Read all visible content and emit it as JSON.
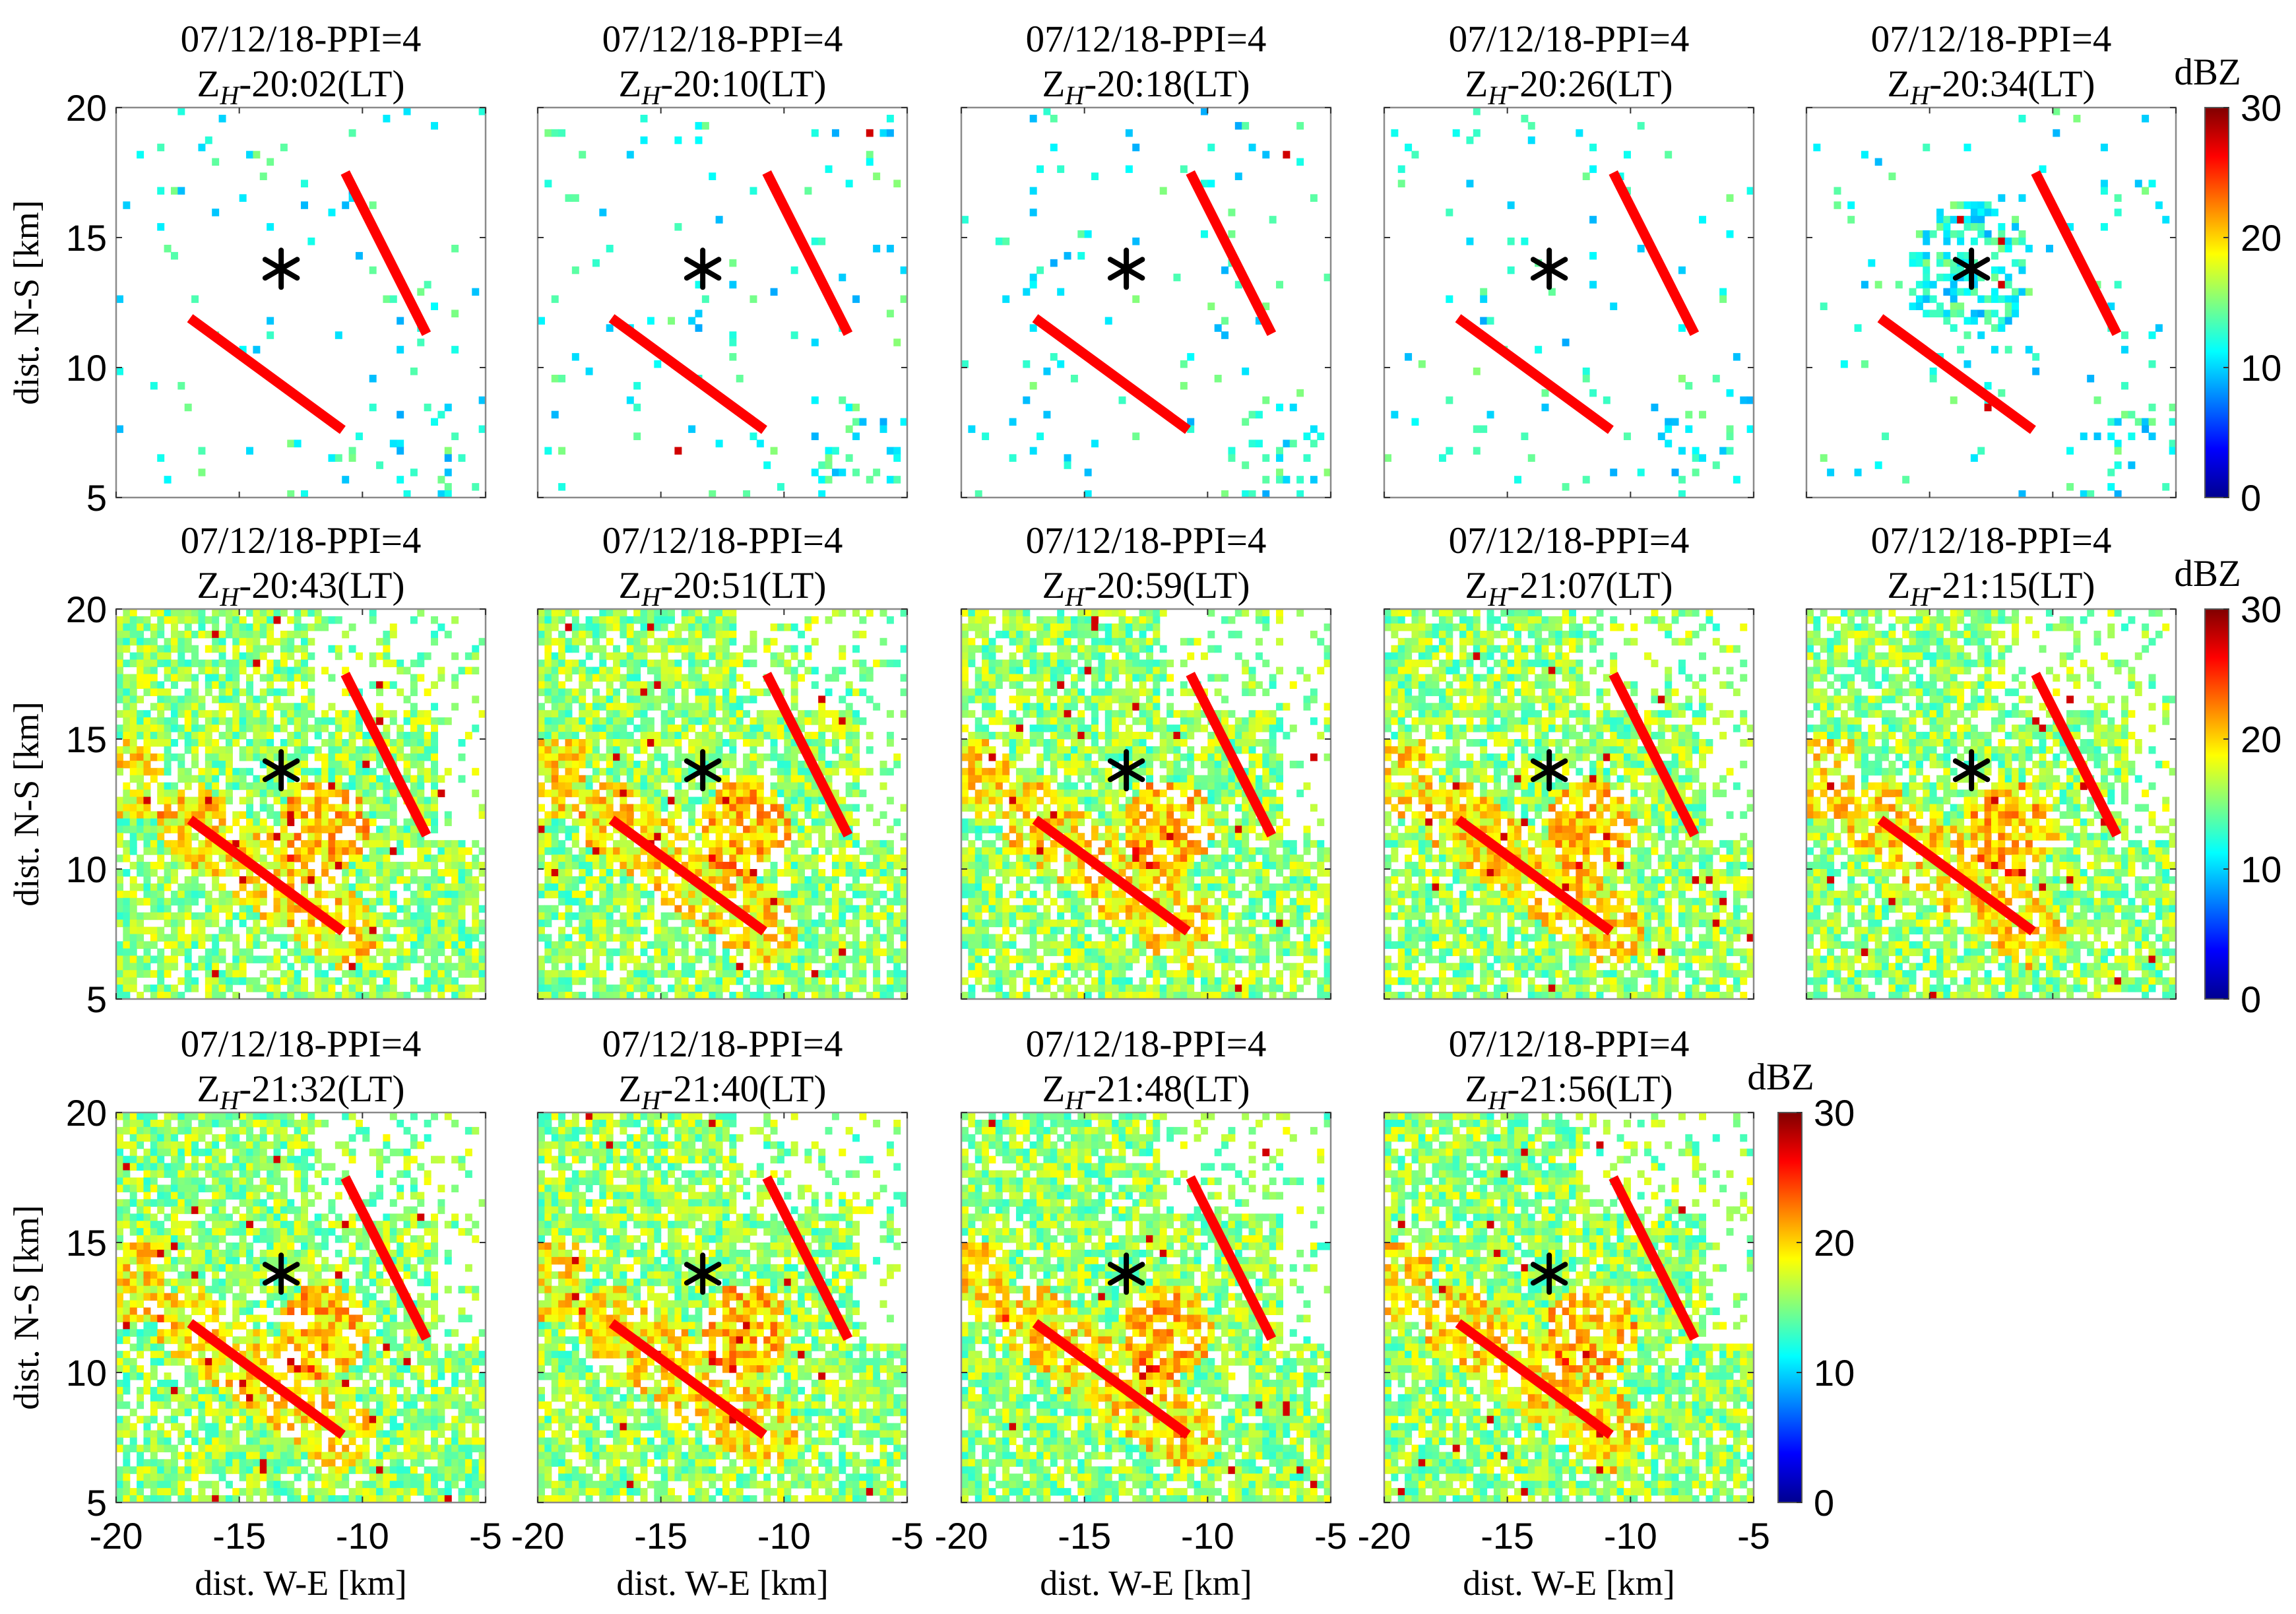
{
  "chart_data": {
    "type": "heatmap",
    "title_line1": "07/12/18-PPI=4",
    "quantity": "Z",
    "quantity_sub": "H",
    "time_suffix": "(LT)",
    "panels": [
      {
        "time": "20:02",
        "intensity": 0.05
      },
      {
        "time": "20:10",
        "intensity": 0.06
      },
      {
        "time": "20:18",
        "intensity": 0.07
      },
      {
        "time": "20:26",
        "intensity": 0.08
      },
      {
        "time": "20:34",
        "intensity": 0.18
      },
      {
        "time": "20:43",
        "intensity": 0.88
      },
      {
        "time": "20:51",
        "intensity": 0.92
      },
      {
        "time": "20:59",
        "intensity": 0.9
      },
      {
        "time": "21:07",
        "intensity": 0.9
      },
      {
        "time": "21:15",
        "intensity": 0.88
      },
      {
        "time": "21:32",
        "intensity": 0.9
      },
      {
        "time": "21:40",
        "intensity": 0.92
      },
      {
        "time": "21:48",
        "intensity": 0.94
      },
      {
        "time": "21:56",
        "intensity": 0.94
      }
    ],
    "xlim": [
      -20,
      -5
    ],
    "ylim": [
      5,
      20
    ],
    "xticks": [
      -20,
      -15,
      -10,
      -5
    ],
    "yticks": [
      5,
      10,
      15,
      20
    ],
    "xtick_labels": [
      "-20",
      "-15",
      "-10",
      "-5"
    ],
    "ytick_labels": [
      "5",
      "10",
      "15",
      "20"
    ],
    "xlabel": "dist. W-E [km]",
    "ylabel": "dist. N-S [km]",
    "colorbar": {
      "label": "dBZ",
      "min": 0,
      "max": 30,
      "ticks": [
        "0",
        "10",
        "20",
        "30"
      ]
    },
    "site_marker": {
      "x": -13.3,
      "y": 13.8,
      "symbol": "*"
    },
    "line_segments": [
      {
        "x1": -17.0,
        "y1": 11.9,
        "x2": -10.8,
        "y2": 7.6
      },
      {
        "x1": -10.7,
        "y1": 17.5,
        "x2": -7.4,
        "y2": 11.3
      }
    ],
    "colors": {
      "segments": "#ff0000",
      "marker": "#000000",
      "frame": "#8a8a8a"
    }
  }
}
